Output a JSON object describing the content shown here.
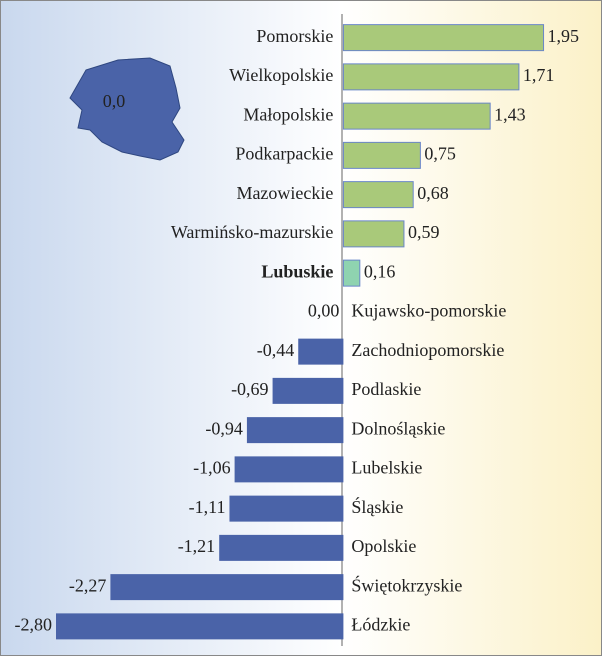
{
  "chart_data": {
    "type": "bar",
    "orientation": "horizontal",
    "annotation": "0,0",
    "categories": [
      "Pomorskie",
      "Wielkopolskie",
      "Małopolskie",
      "Podkarpackie",
      "Mazowieckie",
      "Warmińsko-mazurskie",
      "Lubuskie",
      "Kujawsko-pomorskie",
      "Zachodniopomorskie",
      "Podlaskie",
      "Dolnośląskie",
      "Lubelskie",
      "Śląskie",
      "Opolskie",
      "Świętokrzyskie",
      "Łódzkie"
    ],
    "values": [
      1.95,
      1.71,
      1.43,
      0.75,
      0.68,
      0.59,
      0.16,
      0,
      -0.44,
      -0.69,
      -0.94,
      -1.06,
      -1.11,
      -1.21,
      -2.27,
      -2.8
    ],
    "value_labels": [
      "1,95",
      "1,71",
      "1,43",
      "0,75",
      "0,68",
      "0,59",
      "0,16",
      "0,00",
      "-0,44",
      "-0,69",
      "-0,94",
      "-1,06",
      "-1,11",
      "-1,21",
      "-2,27",
      "-2,80"
    ],
    "positive_color": "#a9c97a",
    "negative_color": "#4a63a8",
    "highlight_index": 6,
    "highlight_color": "#8fd3b0",
    "xlim": [
      -2.8,
      2.5
    ]
  }
}
